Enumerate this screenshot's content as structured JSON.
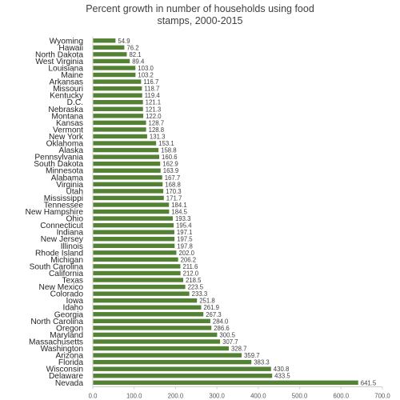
{
  "chart_data": {
    "type": "bar",
    "orientation": "horizontal",
    "title_lines": [
      "Percent growth in number of households using food",
      "stamps, 2000-2015"
    ],
    "xlabel": "",
    "ylabel": "",
    "xlim": [
      0,
      700
    ],
    "x_ticks": [
      0,
      100,
      200,
      300,
      400,
      500,
      600,
      700
    ],
    "x_tick_labels": [
      "0.0",
      "100.0",
      "200.0",
      "300.0",
      "400.0",
      "500.0",
      "600.0",
      "700.0"
    ],
    "grid": false,
    "legend": "none",
    "bar_color": "#548235",
    "categories": [
      "Wyoming",
      "Hawaii",
      "North Dakota",
      "West Virginia",
      "Louisiana",
      "Maine",
      "Arkansas",
      "Missouri",
      "Kentucky",
      "D.C.",
      "Nebraska",
      "Montana",
      "Kansas",
      "Vermont",
      "New York",
      "Oklahoma",
      "Alaska",
      "Pennsylvania",
      "South Dakota",
      "Minnesota",
      "Alabama",
      "Virginia",
      "Utah",
      "Mississippi",
      "Tennessee",
      "New Hampshire",
      "Ohio",
      "Connecticut",
      "Indiana",
      "New Jersey",
      "Illinois",
      "Rhode Island",
      "Michigan",
      "South Carolina",
      "California",
      "Texas",
      "New Mexico",
      "Colorado",
      "Iowa",
      "Idaho",
      "Georgia",
      "North Carolina",
      "Oregon",
      "Maryland",
      "Massachusetts",
      "Washington",
      "Arizona",
      "Florida",
      "Wisconsin",
      "Delaware",
      "Nevada"
    ],
    "values": [
      54.9,
      76.2,
      82.1,
      89.4,
      103.0,
      103.2,
      116.7,
      118.7,
      119.4,
      121.1,
      121.3,
      122.0,
      128.7,
      128.8,
      131.3,
      153.1,
      158.8,
      160.6,
      162.9,
      163.9,
      167.7,
      168.8,
      170.3,
      171.7,
      184.1,
      184.5,
      193.3,
      195.4,
      197.1,
      197.5,
      197.8,
      202.0,
      206.2,
      211.6,
      212.0,
      218.5,
      223.5,
      233.3,
      251.8,
      261.9,
      267.3,
      284.0,
      286.6,
      300.5,
      307.7,
      328.7,
      359.7,
      383.3,
      430.8,
      433.5,
      641.5
    ],
    "value_labels": [
      "54.9",
      "76.2",
      "82.1",
      "89.4",
      "103.0",
      "103.2",
      "116.7",
      "118.7",
      "119.4",
      "121.1",
      "121.3",
      "122.0",
      "128.7",
      "128.8",
      "131.3",
      "153.1",
      "158.8",
      "160.6",
      "162.9",
      "163.9",
      "167.7",
      "168.8",
      "170.3",
      "171.7",
      "184.1",
      "184.5",
      "193.3",
      "195.4",
      "197.1",
      "197.5",
      "197.8",
      "202.0",
      "206.2",
      "211.6",
      "212.0",
      "218.5",
      "223.5",
      "233.3",
      "251.8",
      "261.9",
      "267.3",
      "284.0",
      "286.6",
      "300.5",
      "307.7",
      "328.7",
      "359.7",
      "383.3",
      "430.8",
      "433.5",
      "641.5"
    ]
  }
}
